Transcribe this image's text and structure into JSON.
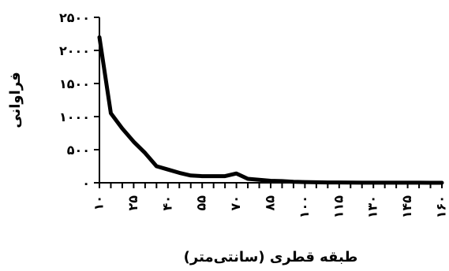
{
  "chart_data": {
    "type": "line",
    "title": "",
    "xlabel": "طبقه قطری (سانتی‌متر)",
    "ylabel": "فراوانی",
    "ylim": [
      0,
      2500
    ],
    "xlim": [
      10,
      160
    ],
    "y_ticks": [
      0,
      500,
      1000,
      1500,
      2000,
      2500
    ],
    "y_tick_labels": [
      "۰",
      "۵۰۰",
      "۱۰۰۰",
      "۱۵۰۰",
      "۲۰۰۰",
      "۲۵۰۰"
    ],
    "x_ticks": [
      10,
      25,
      40,
      55,
      70,
      85,
      100,
      115,
      130,
      145,
      160
    ],
    "x_tick_labels": [
      "۱۰",
      "۲۵",
      "۴۰",
      "۵۵",
      "۷۰",
      "۸۵",
      "۱۰۰",
      "۱۱۵",
      "۱۳۰",
      "۱۴۵",
      "۱۶۰"
    ],
    "grid": false,
    "legend": "none",
    "series": [
      {
        "x": [
          10,
          15,
          20,
          25,
          30,
          35,
          40,
          45,
          50,
          55,
          60,
          65,
          70,
          75,
          80,
          85,
          90,
          95,
          100,
          105,
          110,
          115,
          120,
          125,
          130,
          135,
          140,
          145,
          150,
          155,
          160
        ],
        "y": [
          2200,
          1050,
          820,
          620,
          450,
          250,
          200,
          150,
          110,
          100,
          100,
          100,
          140,
          60,
          45,
          30,
          25,
          15,
          10,
          8,
          5,
          4,
          3,
          2,
          2,
          1,
          1,
          1,
          1,
          0,
          0
        ],
        "color": "#000000"
      }
    ]
  }
}
